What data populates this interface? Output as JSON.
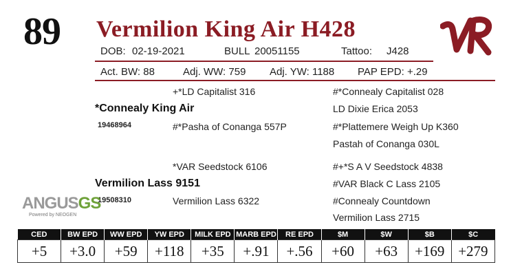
{
  "lot_number": "89",
  "animal_name": "Vermilion King Air H428",
  "info": {
    "dob_label": "DOB:",
    "dob": "02-19-2021",
    "sex_label": "BULL",
    "registration": "20051155",
    "tattoo_label": "Tattoo:",
    "tattoo": "J428"
  },
  "stats": {
    "act_bw": "Act. BW: 88",
    "adj_ww": "Adj. WW: 759",
    "adj_yw": "Adj. YW: 1188",
    "pap_epd": "PAP EPD: +.29"
  },
  "pedigree": {
    "sire": "*Connealy King Air",
    "sire_reg": "19468964",
    "sire_sire": "+*LD Capitalist 316",
    "sire_dam": "#*Pasha of Conanga 557P",
    "sire_sire_sire": "#*Connealy Capitalist 028",
    "sire_sire_dam": "LD Dixie Erica 2053",
    "sire_dam_sire": "#*Plattemere Weigh Up K360",
    "sire_dam_dam": "Pastah of Conanga 030L",
    "dam": "Vermilion Lass 9151",
    "dam_reg": "19508310",
    "dam_sire": "*VAR Seedstock 6106",
    "dam_dam": "Vermilion Lass 6322",
    "dam_sire_sire": "#+*S A V Seedstock 4838",
    "dam_sire_dam": "#VAR Black C Lass 2105",
    "dam_dam_sire": "#Connealy Countdown",
    "dam_dam_dam": "Vermilion Lass 2715"
  },
  "logos": {
    "ranch_logo_text": "VR",
    "angus_text_1": "ANGUS",
    "angus_text_2": "GS",
    "angus_sub": "Powered by NEOGEN"
  },
  "epd": {
    "headers": [
      "CED",
      "BW EPD",
      "WW EPD",
      "YW EPD",
      "MILK EPD",
      "MARB EPD",
      "RE EPD",
      "$M",
      "$W",
      "$B",
      "$C"
    ],
    "values": [
      "+5",
      "+3.0",
      "+59",
      "+118",
      "+35",
      "+.91",
      "+.56",
      "+60",
      "+63",
      "+169",
      "+279"
    ]
  },
  "colors": {
    "brand_red": "#8b1c24",
    "angus_gray": "#9a9a9a",
    "angus_green": "#6fa23a"
  }
}
